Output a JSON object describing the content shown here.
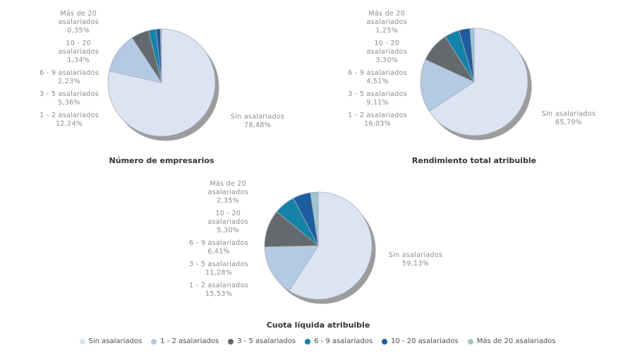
{
  "categories": [
    "Sin asalariados",
    "1 - 2 asalariados",
    "3 - 5 asalariados",
    "6 - 9 asalariados",
    "10 - 20 asalariados",
    "Más de 20 asalariados"
  ],
  "colors": {
    "series": [
      "#dce3f2",
      "#b4cae2",
      "#64696e",
      "#1583a8",
      "#1d5da0",
      "#a0c5d1"
    ],
    "shadow": "#9c9c9c",
    "slice_stroke": "#a6adb8",
    "label_text": "#8b8b8b",
    "title_text": "#333333",
    "legend_text": "#4c4c4c"
  },
  "chart_data": [
    {
      "type": "pie",
      "title": "Número de empresarios",
      "values": [
        78.48,
        12.24,
        5.36,
        2.23,
        1.34,
        0.35
      ],
      "slice_labels": [
        {
          "category": "Más de 20 asalariados",
          "lines": [
            "Más de 20",
            "asalariados"
          ],
          "value": "0,35%"
        },
        {
          "category": "10 - 20 asalariados",
          "lines": [
            "10 - 20",
            "asalariados"
          ],
          "value": "1,34%"
        },
        {
          "category": "6 - 9 asalariados",
          "lines": [
            "6 - 9 asalariados"
          ],
          "value": "2,23%"
        },
        {
          "category": "3 - 5 asalariados",
          "lines": [
            "3 - 5 asalariados"
          ],
          "value": "5,36%"
        },
        {
          "category": "1 - 2 asalariados",
          "lines": [
            "1 - 2 asalariados"
          ],
          "value": "12,24%"
        }
      ],
      "right_label": {
        "category": "Sin asalariados",
        "lines": [
          "Sin asalariados"
        ],
        "value": "78,48%"
      }
    },
    {
      "type": "pie",
      "title": "Rendimiento total atribuible",
      "values": [
        65.79,
        16.03,
        9.11,
        4.51,
        3.3,
        1.25
      ],
      "slice_labels": [
        {
          "category": "Más de 20 asalariados",
          "lines": [
            "Más de 20",
            "asalariados"
          ],
          "value": "1,25%"
        },
        {
          "category": "10 - 20 asalariados",
          "lines": [
            "10 - 20",
            "asalariados"
          ],
          "value": "3,30%"
        },
        {
          "category": "6 - 9 asalariados",
          "lines": [
            "6 - 9 asalariados"
          ],
          "value": "4,51%"
        },
        {
          "category": "3 - 5 asalariados",
          "lines": [
            "3 - 5 asalariados"
          ],
          "value": "9,11%"
        },
        {
          "category": "1 - 2 asalariados",
          "lines": [
            "1 - 2 asalariados"
          ],
          "value": "16,03%"
        }
      ],
      "right_label": {
        "category": "Sin asalariados",
        "lines": [
          "Sin asalariados"
        ],
        "value": "65,79%"
      }
    },
    {
      "type": "pie",
      "title": "Cuota líquida atribuible",
      "values": [
        59.13,
        15.53,
        11.28,
        6.41,
        5.3,
        2.35
      ],
      "slice_labels": [
        {
          "category": "Más de 20 asalariados",
          "lines": [
            "Más de 20",
            "asalariados"
          ],
          "value": "2,35%"
        },
        {
          "category": "10 - 20 asalariados",
          "lines": [
            "10 - 20",
            "asalariados"
          ],
          "value": "5,30%"
        },
        {
          "category": "6 - 9 asalariados",
          "lines": [
            "6 - 9 asalariados"
          ],
          "value": "6,41%"
        },
        {
          "category": "3 - 5 asalariados",
          "lines": [
            "3 - 5 asalariados"
          ],
          "value": "11,28%"
        },
        {
          "category": "1 - 2 asalariados",
          "lines": [
            "1 - 2 asalariados"
          ],
          "value": "15,53%"
        }
      ],
      "right_label": {
        "category": "Sin asalariados",
        "lines": [
          "Sin asalariados"
        ],
        "value": "59,13%"
      }
    }
  ],
  "legend": {
    "items": [
      {
        "label": "Sin asalariados",
        "color": "#dce3f2"
      },
      {
        "label": "1 - 2 asalariados",
        "color": "#b4cae2"
      },
      {
        "label": "3 - 5 asalariados",
        "color": "#64696e"
      },
      {
        "label": "6 - 9 asalariados",
        "color": "#1583a8"
      },
      {
        "label": "10 - 20 asalariados",
        "color": "#1d5da0"
      },
      {
        "label": "Más de 20 asalariados",
        "color": "#a0c5d1"
      }
    ]
  }
}
